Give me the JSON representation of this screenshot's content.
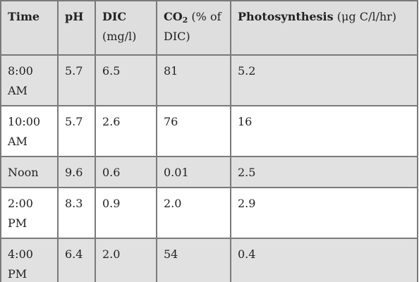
{
  "table": {
    "headers": {
      "time": "Time",
      "ph": "pH",
      "dic_bold": "DIC",
      "dic_unit": "(mg/l)",
      "co2_bold": "CO",
      "co2_sub": "2",
      "co2_unit": "(% of DIC)",
      "photo_bold": "Photosynthesis",
      "photo_unit": "(μg C/l/hr)"
    },
    "rows": [
      {
        "time": "8:00 AM",
        "ph": "5.7",
        "dic": "6.5",
        "co2": "81",
        "photosynthesis": "5.2"
      },
      {
        "time": "10:00 AM",
        "ph": "5.7",
        "dic": "2.6",
        "co2": "76",
        "photosynthesis": "16"
      },
      {
        "time": "Noon",
        "ph": "9.6",
        "dic": "0.6",
        "co2": "0.01",
        "photosynthesis": "2.5"
      },
      {
        "time": "2:00 PM",
        "ph": "8.3",
        "dic": "0.9",
        "co2": "2.0",
        "photosynthesis": "2.9"
      },
      {
        "time": "4:00 PM",
        "ph": "6.4",
        "dic": "2.0",
        "co2": "54",
        "photosynthesis": "0.4"
      }
    ]
  },
  "colors": {
    "header_bg": "#dedede",
    "shaded_row_bg": "#e1e1e1",
    "plain_row_bg": "#ffffff",
    "border": "#7a7a7a"
  }
}
